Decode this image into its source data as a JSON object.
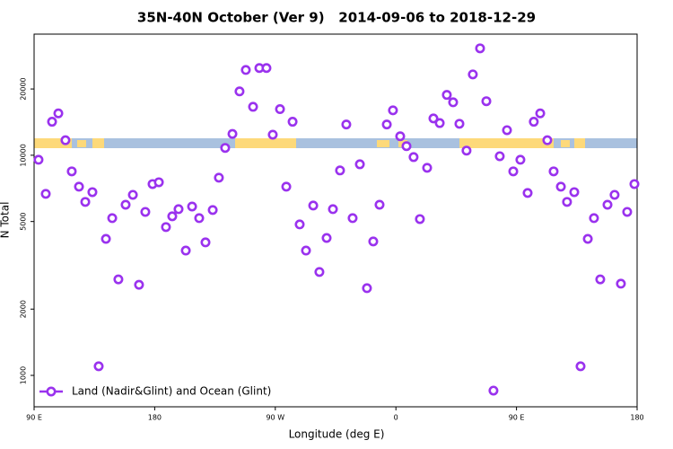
{
  "chart_data": {
    "type": "scatter",
    "title": "35N-40N October (Ver 9)   2014-09-06 to 2018-12-29",
    "xlabel": "Longitude (deg E)",
    "ylabel": "N Total",
    "xlim": [
      90,
      540
    ],
    "xticks": [
      {
        "value": 90,
        "label": "90 E"
      },
      180,
      {
        "value": 270,
        "label": "90 W"
      },
      {
        "value": 360,
        "label": "0"
      },
      {
        "value": 450,
        "label": "90 E"
      },
      {
        "value": 540,
        "label": "180"
      }
    ],
    "ylim": [
      720,
      35500
    ],
    "ylog": true,
    "yticks": [
      1000,
      2000,
      5000,
      10000,
      20000
    ],
    "legend": "lower left",
    "series": [
      {
        "name": "Land (Nadir&Glint) and Ocean (Glint)",
        "color": "#9a32ee",
        "x": [
          93.3,
          98.7,
          103.4,
          108.1,
          113.4,
          118.1,
          123.5,
          128.2,
          133.5,
          138.2,
          143.6,
          148.3,
          152.9,
          158.3,
          163.7,
          168.3,
          173.0,
          178.4,
          183.1,
          188.4,
          193.1,
          197.8,
          203.2,
          207.9,
          213.2,
          217.9,
          223.3,
          227.9,
          232.6,
          238.0,
          243.3,
          248.0,
          253.4,
          258.1,
          263.4,
          268.1,
          273.5,
          278.2,
          282.9,
          288.2,
          292.9,
          298.3,
          302.9,
          308.3,
          313.0,
          318.3,
          323.0,
          327.7,
          333.1,
          338.4,
          343.1,
          347.8,
          353.2,
          357.8,
          363.2,
          367.9,
          373.2,
          377.9,
          383.3,
          388.0,
          392.7,
          398.0,
          402.7,
          407.4,
          412.7,
          417.4,
          422.8,
          427.5,
          432.8,
          437.5,
          442.9,
          447.6,
          452.9,
          458.3,
          462.9,
          467.7,
          473.0,
          477.7,
          483.1,
          487.7,
          493.1,
          497.8,
          503.2,
          507.8,
          512.5,
          517.9,
          523.2,
          527.9,
          532.6,
          538.0
        ],
        "values": [
          9540,
          6680,
          14200,
          15500,
          11700,
          8450,
          7200,
          6140,
          6800,
          1100,
          4170,
          5180,
          2730,
          5960,
          6610,
          2580,
          5530,
          7400,
          7540,
          4720,
          5280,
          5690,
          3690,
          5850,
          5180,
          4020,
          5640,
          7910,
          10800,
          12500,
          19500,
          24400,
          16600,
          24900,
          24900,
          12400,
          16200,
          7200,
          14200,
          4850,
          3690,
          5910,
          2950,
          4210,
          5690,
          8530,
          13800,
          5180,
          9100,
          2490,
          4060,
          5960,
          13800,
          16000,
          12200,
          11000,
          9810,
          5130,
          8770,
          14700,
          14000,
          18800,
          17400,
          13900,
          10500,
          23300,
          30600,
          17600,
          853,
          9900,
          13000,
          8450,
          9540,
          6740,
          14200,
          15500,
          11700,
          8450,
          7200,
          6140,
          6800,
          1100,
          4170,
          5180,
          2730,
          5960,
          6610,
          2610,
          5530,
          7400
        ]
      }
    ]
  }
}
